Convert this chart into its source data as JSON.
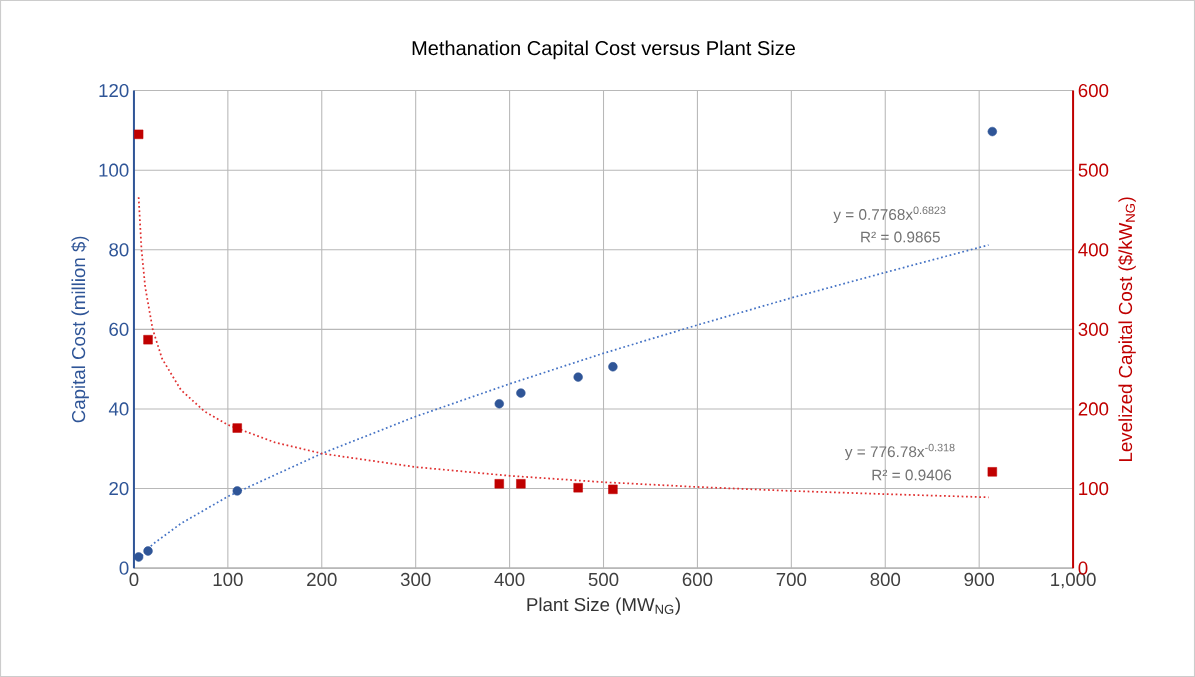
{
  "chart_data": {
    "type": "scatter",
    "title": "Methanation Capital Cost versus Plant Size",
    "xlabel": "Plant Size (MW$_{NG}$)",
    "ylabel": "Capital Cost (million $)",
    "y2label": "Levelized Capital Cost ($/kW$_{NG}$)",
    "xlim": [
      0,
      1000
    ],
    "xticks": [
      0,
      100,
      200,
      300,
      400,
      500,
      600,
      700,
      800,
      900,
      {
        "value": 1000,
        "label": "1,000"
      }
    ],
    "ylim": [
      0,
      120
    ],
    "yticks": [
      0,
      20,
      40,
      60,
      80,
      100,
      120
    ],
    "y2lim": [
      0,
      600
    ],
    "y2ticks": [
      0,
      100,
      200,
      300,
      400,
      500,
      600
    ],
    "grid": true,
    "series": [
      {
        "marker": "circle",
        "color": "#2f5597",
        "x": [
          5,
          15,
          110,
          389,
          412,
          473,
          510,
          914
        ],
        "values": [
          2.8,
          4.3,
          19.4,
          41.3,
          44,
          48,
          50.6,
          109.7
        ]
      },
      {
        "marker": "square",
        "axis": "y2",
        "color": "#c00000",
        "x": [
          5,
          15,
          110,
          389,
          412,
          473,
          510,
          914
        ],
        "values": [
          545,
          287,
          176,
          106,
          106,
          101,
          99,
          121
        ]
      },
      {
        "type": "line",
        "line_style": "dotted",
        "color": "#4472c4",
        "x": [
          5,
          20,
          50,
          100,
          200,
          300,
          400,
          500,
          600,
          700,
          800,
          910
        ],
        "values": [
          2.3,
          6.0,
          11.2,
          18.0,
          28.8,
          38.1,
          46.3,
          54.0,
          61.1,
          67.9,
          74.3,
          81.2
        ]
      },
      {
        "type": "line",
        "line_style": "dotted",
        "axis": "y2",
        "color": "#e03030",
        "x": [
          5,
          8,
          12,
          20,
          30,
          50,
          75,
          100,
          150,
          200,
          300,
          400,
          500,
          600,
          700,
          800,
          910
        ],
        "values": [
          466,
          401,
          353,
          300,
          263,
          224,
          197,
          180,
          158,
          144,
          127,
          116,
          108,
          102,
          97,
          93,
          89
        ]
      }
    ],
    "annotations": [
      "y = 0.7768x$^{0.6823}$",
      "R² = 0.9865",
      "y = 776.78x$^{-0.318}$",
      "R² = 0.9406"
    ]
  }
}
